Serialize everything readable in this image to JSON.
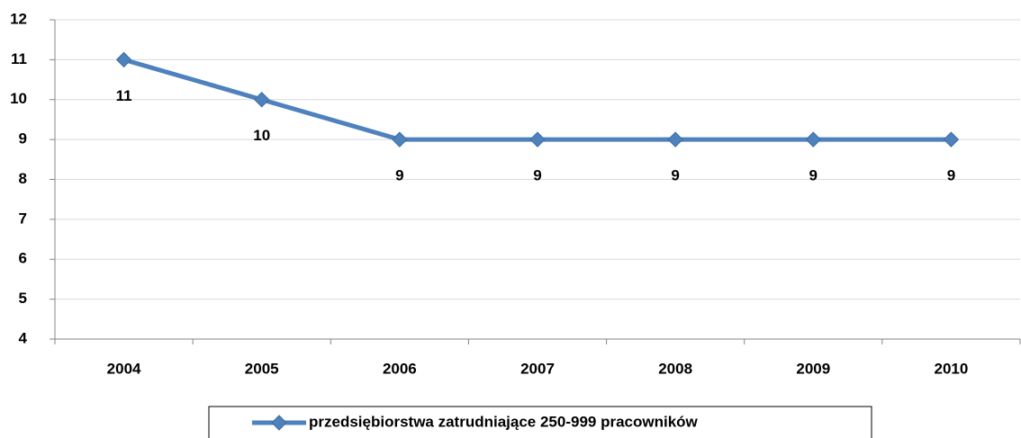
{
  "chart_data": {
    "type": "line",
    "categories": [
      "2004",
      "2005",
      "2006",
      "2007",
      "2008",
      "2009",
      "2010"
    ],
    "series": [
      {
        "name": "przedsiębiorstwa zatrudniające 250-999 pracowników",
        "color": "#4f81bd",
        "values": [
          11,
          10,
          9,
          9,
          9,
          9,
          9
        ]
      }
    ],
    "ylim": [
      4,
      12
    ],
    "yticks": [
      4,
      5,
      6,
      7,
      8,
      9,
      10,
      11,
      12
    ],
    "grid": true,
    "legend": "bottom"
  }
}
